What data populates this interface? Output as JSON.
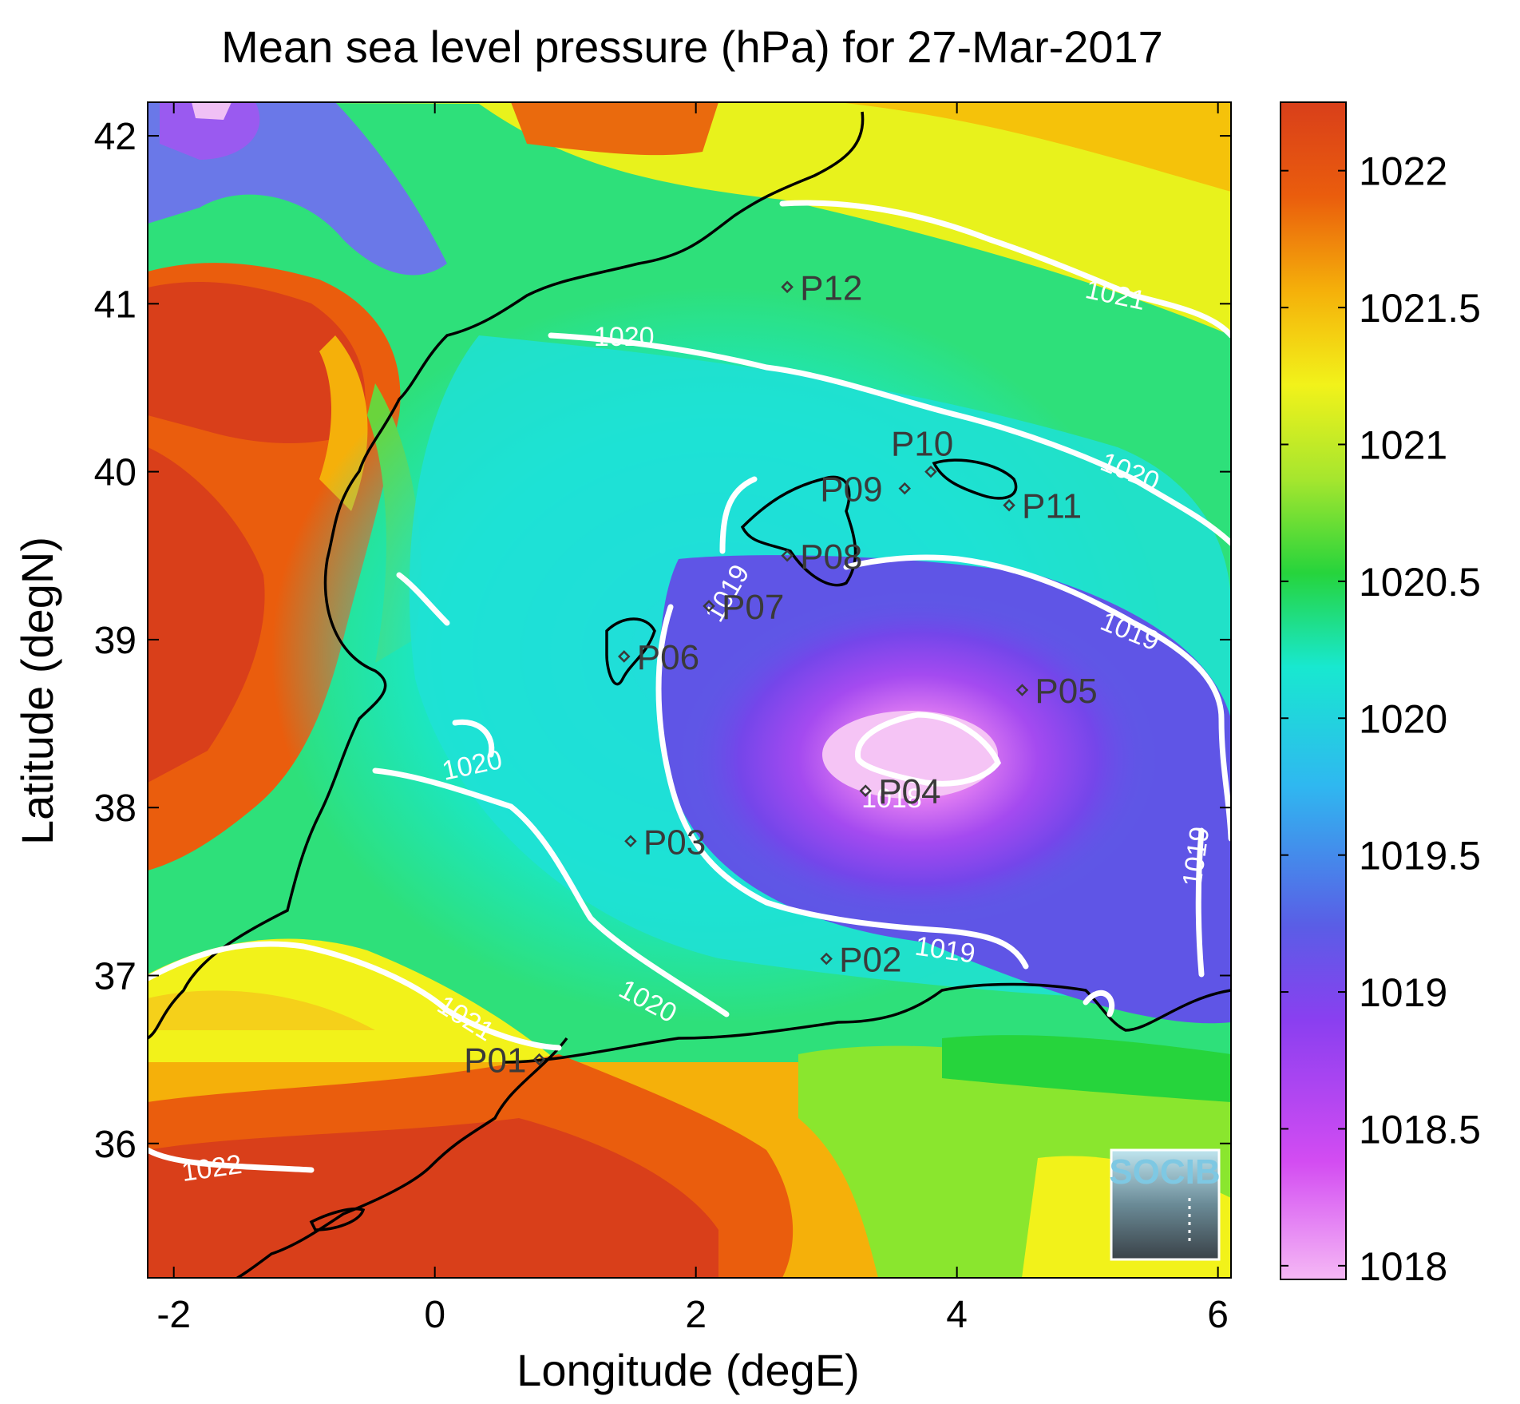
{
  "title": "Mean sea level pressure (hPa) for 27-Mar-2017",
  "xlabel": "Longitude (degE)",
  "ylabel": "Latitude (degN)",
  "x_ticks": [
    "-2",
    "0",
    "2",
    "4",
    "6"
  ],
  "y_ticks": [
    "36",
    "37",
    "38",
    "39",
    "40",
    "41",
    "42"
  ],
  "colorbar": {
    "ticks": [
      "1018",
      "1018.5",
      "1019",
      "1019.5",
      "1020",
      "1020.5",
      "1021",
      "1021.5",
      "1022"
    ],
    "range": [
      1017.95,
      1022.25
    ],
    "colors": [
      "#f5b8f5",
      "#d34cf2",
      "#8a3ff0",
      "#5a5de6",
      "#2fb8f0",
      "#18e8d0",
      "#26d43c",
      "#a6e62e",
      "#f2f21a",
      "#f5b00a",
      "#ea5d0d",
      "#d93f1a"
    ]
  },
  "map": {
    "lon_range": [
      -2.2,
      6.1
    ],
    "lat_range": [
      35.2,
      42.2
    ],
    "stations": [
      {
        "name": "P01",
        "lon": 0.8,
        "lat": 36.5
      },
      {
        "name": "P02",
        "lon": 3.0,
        "lat": 37.1
      },
      {
        "name": "P03",
        "lon": 1.5,
        "lat": 37.8
      },
      {
        "name": "P04",
        "lon": 3.3,
        "lat": 38.1
      },
      {
        "name": "P05",
        "lon": 4.5,
        "lat": 38.7
      },
      {
        "name": "P06",
        "lon": 1.45,
        "lat": 38.9
      },
      {
        "name": "P07",
        "lon": 2.1,
        "lat": 39.2
      },
      {
        "name": "P08",
        "lon": 2.7,
        "lat": 39.5
      },
      {
        "name": "P09",
        "lon": 3.6,
        "lat": 39.9
      },
      {
        "name": "P10",
        "lon": 3.8,
        "lat": 40.0
      },
      {
        "name": "P11",
        "lon": 4.4,
        "lat": 39.8
      },
      {
        "name": "P12",
        "lon": 2.7,
        "lat": 41.1
      }
    ],
    "contour_labels": [
      {
        "text": "1021",
        "lon": 5.2,
        "lat": 41.0,
        "angle": 12
      },
      {
        "text": "1020",
        "lon": 1.45,
        "lat": 40.75,
        "angle": 0
      },
      {
        "text": "1020",
        "lon": 5.3,
        "lat": 39.95,
        "angle": 22
      },
      {
        "text": "1019",
        "lon": 2.3,
        "lat": 39.25,
        "angle": -60
      },
      {
        "text": "1019",
        "lon": 5.3,
        "lat": 39.0,
        "angle": 22
      },
      {
        "text": "1020",
        "lon": 0.3,
        "lat": 38.2,
        "angle": -12
      },
      {
        "text": "1018",
        "lon": 3.5,
        "lat": 38.0,
        "angle": 0
      },
      {
        "text": "1019",
        "lon": 5.9,
        "lat": 37.7,
        "angle": -82
      },
      {
        "text": "1019",
        "lon": 3.9,
        "lat": 37.1,
        "angle": 8
      },
      {
        "text": "1020",
        "lon": 1.6,
        "lat": 36.8,
        "angle": 28
      },
      {
        "text": "1021",
        "lon": 0.2,
        "lat": 36.7,
        "angle": 32
      },
      {
        "text": "1022",
        "lon": -1.7,
        "lat": 35.8,
        "angle": -8
      }
    ],
    "logo": "SOCIB"
  }
}
